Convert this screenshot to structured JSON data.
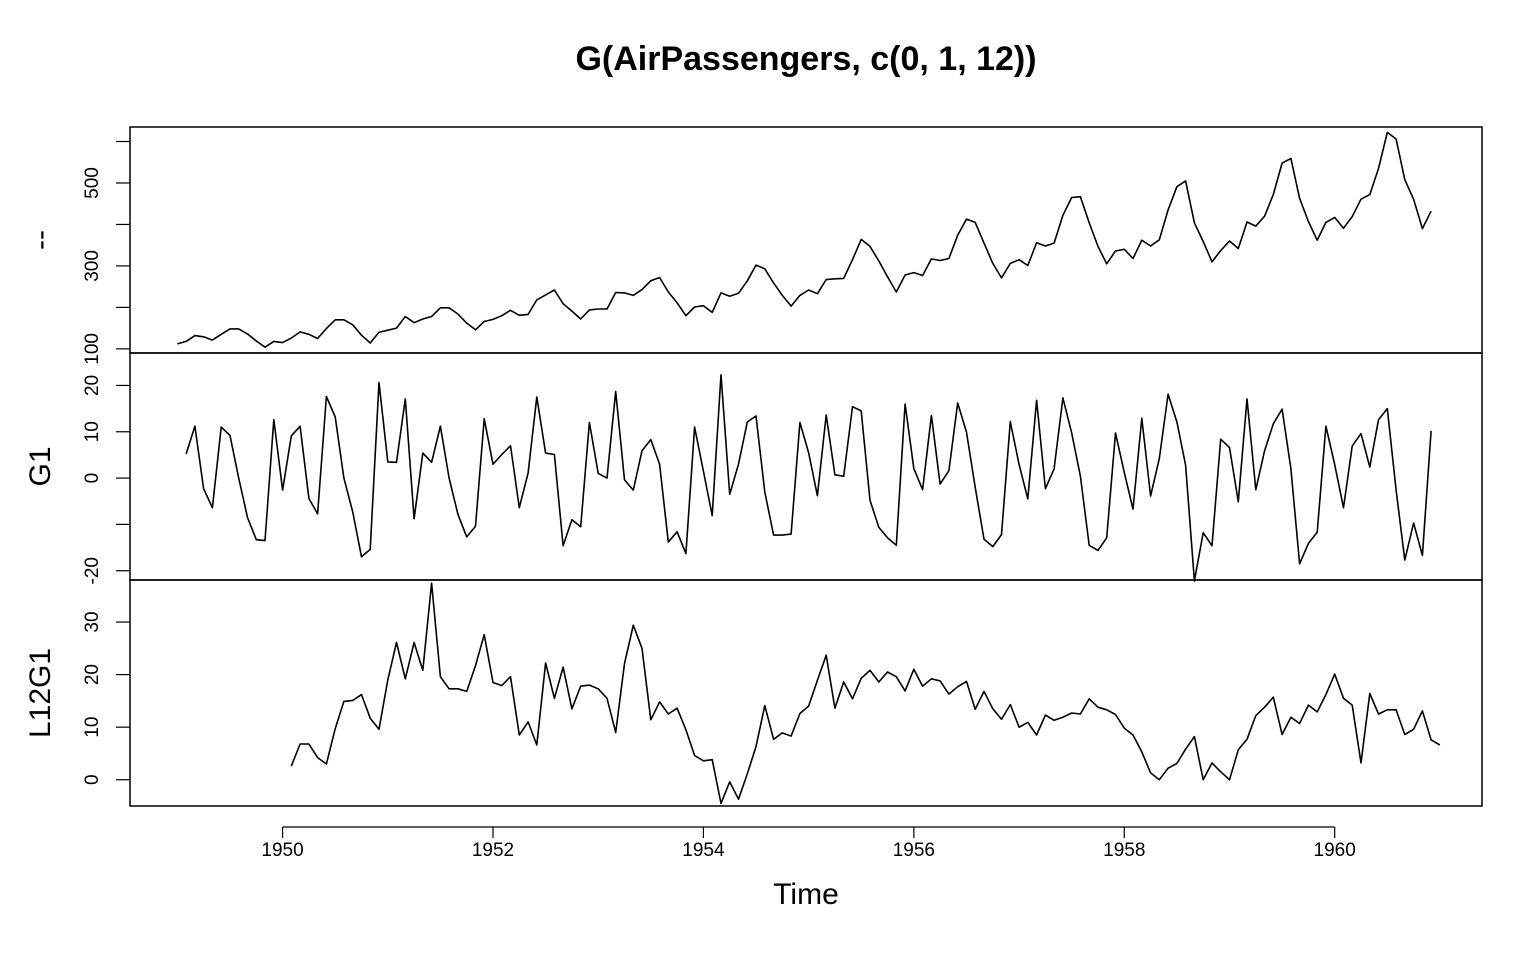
{
  "chart_data": {
    "type": "line",
    "title": "G(AirPassengers, c(0, 1, 12))",
    "xlabel": "Time",
    "x_start": 1949,
    "x_step_months": 1,
    "xlim": [
      1948.55,
      1961.4
    ],
    "x_ticks": [
      1950,
      1952,
      1954,
      1956,
      1958,
      1960
    ],
    "panels": [
      {
        "ylabel": "--",
        "ylim": [
          90,
          635
        ],
        "y_ticks": [
          100,
          200,
          300,
          400,
          500,
          600
        ],
        "y_tick_labels": [
          "100",
          "",
          "300",
          "",
          "500",
          ""
        ],
        "values": [
          112,
          118,
          132,
          129,
          121,
          135,
          148,
          148,
          136,
          119,
          104,
          118,
          115,
          126,
          141,
          135,
          125,
          149,
          170,
          170,
          158,
          133,
          114,
          140,
          145,
          150,
          178,
          163,
          172,
          178,
          199,
          199,
          184,
          162,
          146,
          166,
          171,
          180,
          193,
          181,
          183,
          218,
          230,
          242,
          209,
          191,
          172,
          194,
          196,
          196,
          236,
          235,
          229,
          243,
          264,
          272,
          237,
          211,
          180,
          201,
          204,
          188,
          235,
          227,
          234,
          264,
          302,
          293,
          259,
          229,
          203,
          229,
          242,
          233,
          267,
          269,
          270,
          315,
          364,
          347,
          312,
          274,
          237,
          278,
          284,
          277,
          317,
          313,
          318,
          374,
          413,
          405,
          355,
          306,
          271,
          306,
          315,
          301,
          356,
          348,
          355,
          422,
          465,
          467,
          404,
          347,
          305,
          336,
          340,
          318,
          362,
          348,
          363,
          435,
          491,
          505,
          404,
          359,
          310,
          337,
          360,
          342,
          406,
          396,
          420,
          472,
          548,
          559,
          463,
          407,
          362,
          405,
          417,
          391,
          419,
          461,
          472,
          535,
          622,
          606,
          508,
          461,
          390,
          432
        ]
      },
      {
        "ylabel": "G1",
        "ylim": [
          -22,
          27
        ],
        "y_ticks": [
          -20,
          -10,
          0,
          10,
          20
        ],
        "y_tick_labels": [
          "-20",
          "",
          "0",
          "10",
          "20"
        ],
        "values": [
          null,
          5.2,
          11.2,
          -2.3,
          -6.4,
          11.0,
          9.2,
          0.0,
          -8.5,
          -13.3,
          -13.5,
          12.6,
          -2.6,
          9.1,
          11.2,
          -4.4,
          -7.7,
          17.6,
          13.2,
          0.0,
          -7.3,
          -17.0,
          -15.4,
          20.6,
          3.5,
          3.4,
          17.1,
          -8.8,
          5.4,
          3.4,
          11.2,
          0.0,
          -7.8,
          -12.7,
          -10.4,
          12.8,
          3.0,
          5.1,
          7.0,
          -6.4,
          1.1,
          17.5,
          5.4,
          5.1,
          -14.6,
          -9.0,
          -10.5,
          12.0,
          1.0,
          0.0,
          18.7,
          -0.4,
          -2.6,
          5.9,
          8.3,
          3.0,
          -13.8,
          -11.6,
          -16.3,
          11.0,
          1.5,
          -8.1,
          22.3,
          -3.5,
          3.0,
          12.1,
          13.4,
          -3.0,
          -12.3,
          -12.3,
          -12.1,
          12.0,
          5.5,
          -3.8,
          13.6,
          0.7,
          0.4,
          15.4,
          14.5,
          -4.8,
          -10.6,
          -12.9,
          -14.5,
          16.0,
          2.1,
          -2.5,
          13.5,
          -1.3,
          1.6,
          16.2,
          9.9,
          -2.0,
          -13.2,
          -14.8,
          -12.2,
          12.2,
          2.9,
          -4.5,
          16.8,
          -2.3,
          2.0,
          17.3,
          9.7,
          0.4,
          -14.5,
          -15.6,
          -12.9,
          9.7,
          1.2,
          -6.7,
          12.9,
          -3.9,
          4.2,
          18.1,
          12.1,
          2.8,
          -22.2,
          -11.8,
          -14.6,
          8.4,
          6.6,
          -5.1,
          17.1,
          -2.5,
          5.9,
          11.7,
          14.9,
          2.0,
          -18.5,
          -14.1,
          -11.7,
          11.2,
          2.9,
          -6.4,
          6.9,
          9.6,
          2.4,
          12.6,
          15.0,
          -2.6,
          -17.7,
          -9.7,
          -16.7,
          10.2
        ]
      },
      {
        "ylabel": "L12G1",
        "ylim": [
          -5,
          38
        ],
        "y_ticks": [
          0,
          10,
          20,
          30
        ],
        "y_tick_labels": [
          "0",
          "10",
          "20",
          "30"
        ],
        "values": [
          null,
          null,
          null,
          null,
          null,
          null,
          null,
          null,
          null,
          null,
          null,
          null,
          null,
          2.6,
          6.8,
          6.8,
          4.2,
          3.0,
          9.7,
          14.9,
          15.1,
          16.2,
          11.7,
          9.6,
          19.0,
          26.1,
          19.2,
          26.1,
          20.8,
          37.4,
          19.6,
          17.3,
          17.3,
          16.8,
          21.7,
          27.6,
          18.5,
          17.9,
          19.6,
          8.5,
          11.0,
          6.6,
          22.2,
          15.5,
          21.4,
          13.5,
          17.8,
          18.0,
          17.3,
          15.5,
          9.0,
          22.1,
          29.4,
          25.0,
          11.4,
          14.8,
          12.5,
          13.6,
          9.5,
          4.6,
          3.6,
          3.8,
          -4.5,
          -0.4,
          -3.7,
          1.1,
          6.3,
          14.1,
          7.7,
          8.9,
          8.3,
          12.6,
          14.0,
          18.9,
          23.7,
          13.6,
          18.6,
          15.4,
          19.3,
          20.8,
          18.6,
          20.5,
          19.6,
          16.9,
          21.0,
          17.8,
          19.2,
          18.8,
          16.3,
          17.7,
          18.7,
          13.4,
          16.8,
          13.5,
          11.5,
          14.3,
          10.0,
          10.9,
          8.5,
          12.3,
          11.3,
          11.9,
          12.7,
          12.5,
          15.4,
          13.8,
          13.3,
          12.4,
          9.8,
          8.5,
          5.3,
          1.3,
          0.0,
          2.2,
          3.1,
          5.8,
          8.2,
          0.0,
          3.2,
          1.5,
          0.0,
          5.7,
          7.7,
          12.2,
          13.8,
          15.7,
          8.6,
          11.9,
          10.7,
          14.2,
          12.9,
          16.2,
          20.1,
          15.5,
          14.2,
          3.2,
          16.4,
          12.5,
          13.3,
          13.3,
          8.6,
          9.6,
          13.1,
          7.6,
          6.6
        ]
      }
    ]
  }
}
